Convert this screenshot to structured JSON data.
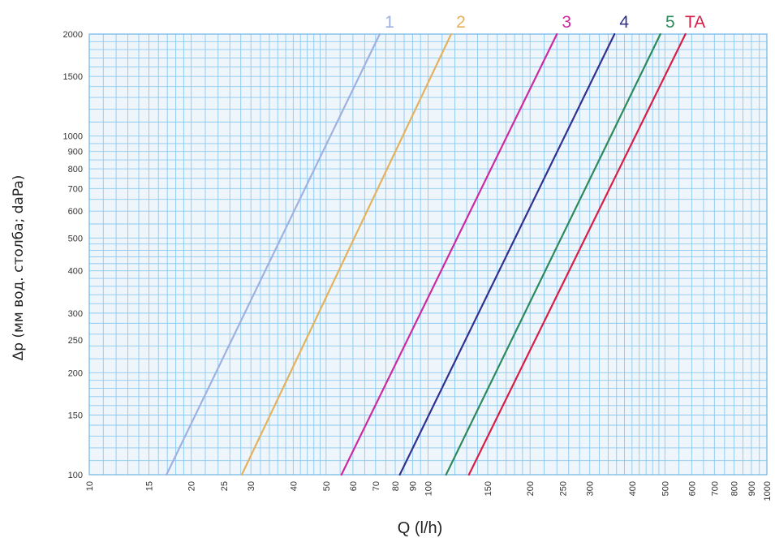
{
  "chart_data": {
    "type": "line",
    "xlabel": "Q (l/h)",
    "ylabel": "Δp (мм вод. столба; daPa)",
    "x_scale": "log",
    "y_scale": "log",
    "xlim": [
      10,
      1000
    ],
    "ylim": [
      100,
      2000
    ],
    "grid": true,
    "x_ticks": [
      10,
      15,
      20,
      25,
      30,
      40,
      50,
      60,
      70,
      80,
      90,
      100,
      150,
      200,
      250,
      300,
      400,
      500,
      600,
      700,
      800,
      900,
      1000
    ],
    "y_ticks": [
      100,
      150,
      200,
      250,
      300,
      400,
      500,
      600,
      700,
      800,
      900,
      1000,
      1500,
      2000
    ],
    "series": [
      {
        "name": "1",
        "color": "#9fb1e0",
        "points": [
          [
            16.9,
            100
          ],
          [
            72,
            2000
          ]
        ]
      },
      {
        "name": "2",
        "color": "#e4b25c",
        "points": [
          [
            28.2,
            100
          ],
          [
            117,
            2000
          ]
        ]
      },
      {
        "name": "3",
        "color": "#cc2aa0",
        "points": [
          [
            55.5,
            100
          ],
          [
            240,
            2000
          ]
        ]
      },
      {
        "name": "4",
        "color": "#33308e",
        "points": [
          [
            82.5,
            100
          ],
          [
            355,
            2000
          ]
        ]
      },
      {
        "name": "5",
        "color": "#2e8a5c",
        "points": [
          [
            113,
            100
          ],
          [
            485,
            2000
          ]
        ]
      },
      {
        "name": "TA",
        "color": "#d81e46",
        "points": [
          [
            132,
            100
          ],
          [
            575,
            2000
          ]
        ]
      }
    ]
  }
}
